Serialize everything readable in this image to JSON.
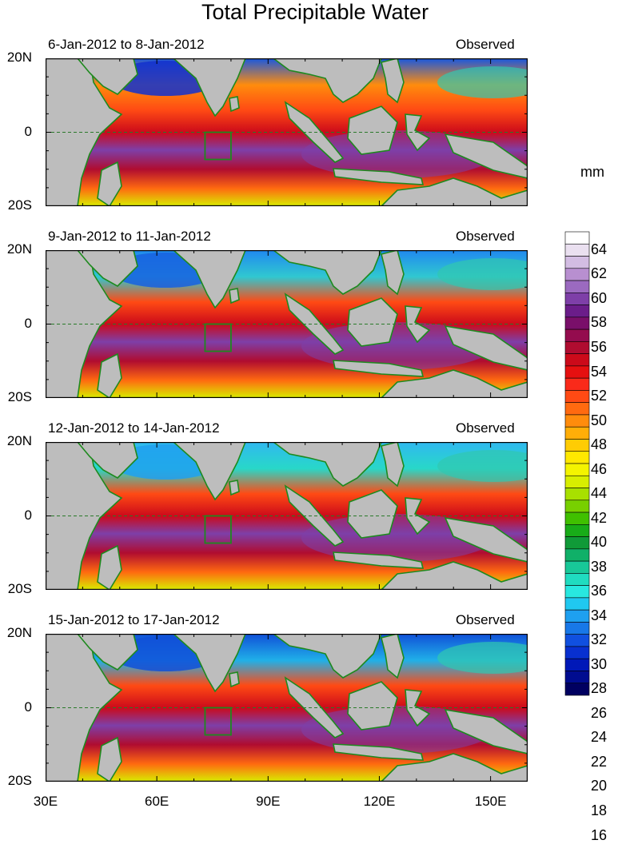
{
  "title": "Total Precipitable Water",
  "unit": "mm",
  "panels": [
    {
      "period": "6-Jan-2012 to 8-Jan-2012",
      "tag": "Observed"
    },
    {
      "period": "9-Jan-2012 to 11-Jan-2012",
      "tag": "Observed"
    },
    {
      "period": "12-Jan-2012 to 14-Jan-2012",
      "tag": "Observed"
    },
    {
      "period": "15-Jan-2012 to 17-Jan-2012",
      "tag": "Observed"
    }
  ],
  "lat_labels": [
    "20N",
    "0",
    "20S"
  ],
  "lon_labels": [
    "30E",
    "60E",
    "90E",
    "120E",
    "150E"
  ],
  "colorbar": {
    "labels": [
      "64",
      "62",
      "60",
      "58",
      "56",
      "54",
      "52",
      "50",
      "48",
      "46",
      "44",
      "42",
      "40",
      "38",
      "36",
      "34",
      "32",
      "30",
      "28",
      "26",
      "24",
      "22",
      "20",
      "18",
      "16"
    ],
    "colors": [
      "#ffffff",
      "#eae0f0",
      "#d3bde3",
      "#b88fd0",
      "#9b6ac0",
      "#7e3fa8",
      "#6b1d8a",
      "#7a0f6a",
      "#940c4e",
      "#b00c30",
      "#cc0a1a",
      "#e61010",
      "#fa2a1a",
      "#ff4a14",
      "#ff6a10",
      "#ff8c0c",
      "#ffae08",
      "#ffcc04",
      "#ffe800",
      "#f4f400",
      "#d8ee00",
      "#a8e000",
      "#78d000",
      "#40c000",
      "#18ac18",
      "#109a38",
      "#10b068",
      "#18c898",
      "#20dcc0",
      "#28e8e0",
      "#20c8f0",
      "#1ea0f0",
      "#1878e8",
      "#1050e0",
      "#0830d0",
      "#0018b8",
      "#000c90",
      "#000060"
    ]
  },
  "colors": {
    "land": "#bdbdbd",
    "coast": "#1e8a1e",
    "box": "#1e8a1e"
  }
}
